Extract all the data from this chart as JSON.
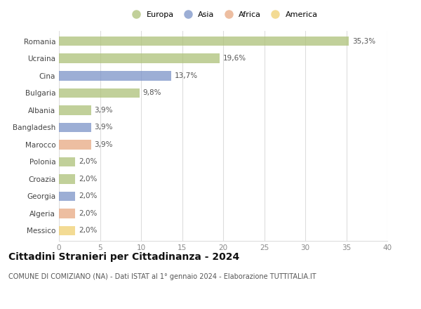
{
  "categories": [
    "Romania",
    "Ucraina",
    "Cina",
    "Bulgaria",
    "Albania",
    "Bangladesh",
    "Marocco",
    "Polonia",
    "Croazia",
    "Georgia",
    "Algeria",
    "Messico"
  ],
  "values": [
    35.3,
    19.6,
    13.7,
    9.8,
    3.9,
    3.9,
    3.9,
    2.0,
    2.0,
    2.0,
    2.0,
    2.0
  ],
  "labels": [
    "35,3%",
    "19,6%",
    "13,7%",
    "9,8%",
    "3,9%",
    "3,9%",
    "3,9%",
    "2,0%",
    "2,0%",
    "2,0%",
    "2,0%",
    "2,0%"
  ],
  "colors": [
    "#adc178",
    "#adc178",
    "#7b93c8",
    "#adc178",
    "#adc178",
    "#7b93c8",
    "#e8a882",
    "#adc178",
    "#adc178",
    "#7b93c8",
    "#e8a882",
    "#f0d070"
  ],
  "legend_labels": [
    "Europa",
    "Asia",
    "Africa",
    "America"
  ],
  "legend_colors": [
    "#adc178",
    "#7b93c8",
    "#e8a882",
    "#f0d070"
  ],
  "title": "Cittadini Stranieri per Cittadinanza - 2024",
  "subtitle": "COMUNE DI COMIZIANO (NA) - Dati ISTAT al 1° gennaio 2024 - Elaborazione TUTTITALIA.IT",
  "xlim": [
    0,
    40
  ],
  "xticks": [
    0,
    5,
    10,
    15,
    20,
    25,
    30,
    35,
    40
  ],
  "background_color": "#ffffff",
  "grid_color": "#dddddd",
  "bar_height": 0.55,
  "label_fontsize": 7.5,
  "tick_fontsize": 7.5,
  "title_fontsize": 10,
  "subtitle_fontsize": 7
}
